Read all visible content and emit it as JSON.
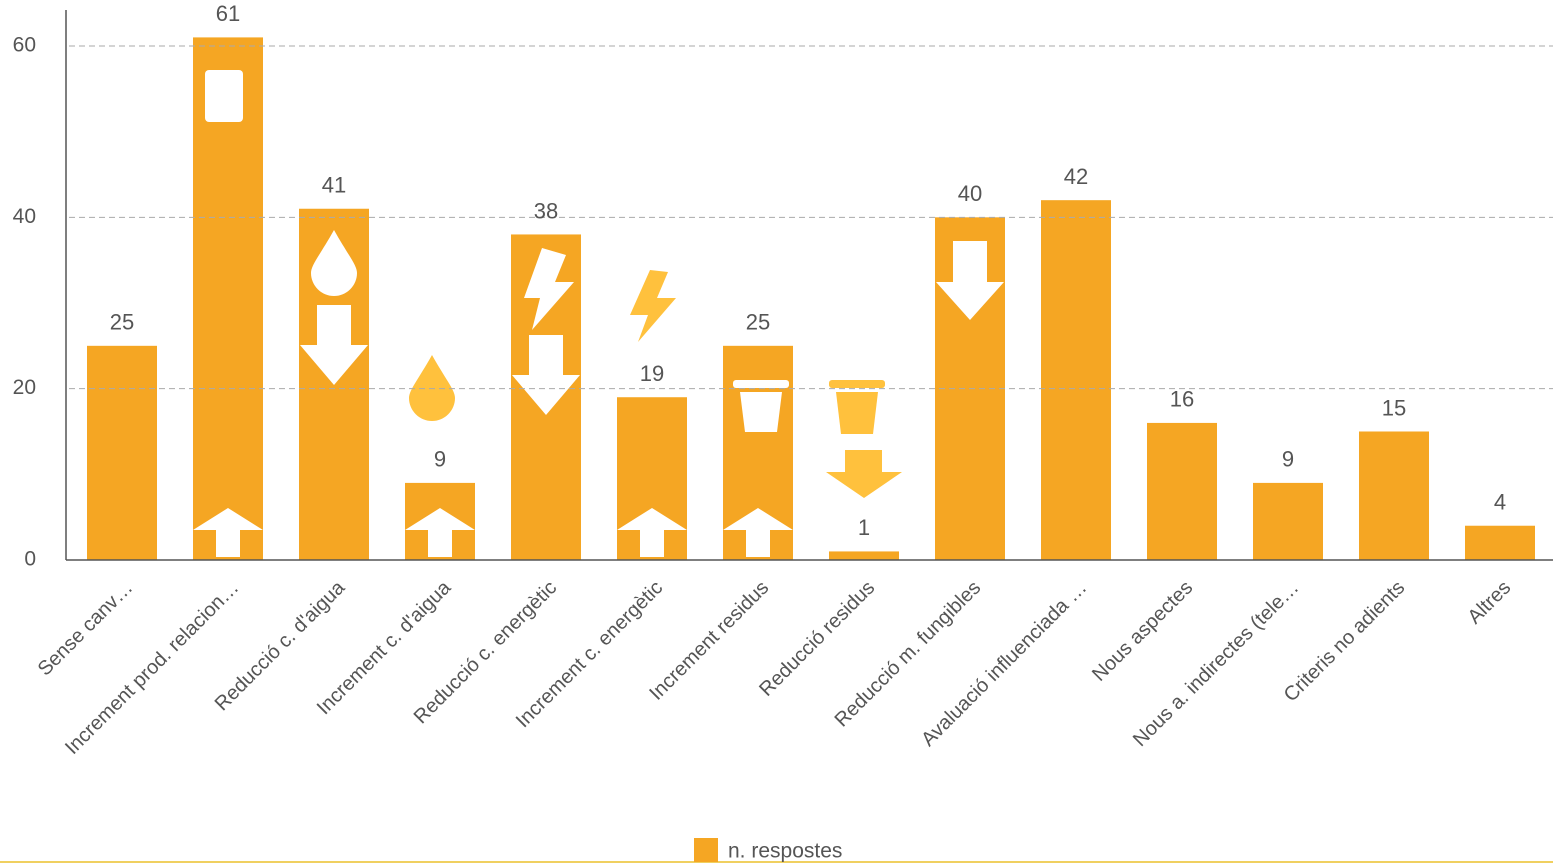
{
  "chart_data": {
    "type": "bar",
    "categories": [
      "Sense canv…",
      "Increment prod. relacion…",
      "Reducció c. d'aigua",
      "Increment c. d'aigua",
      "Reducció c. energètic",
      "Increment c. energètic",
      "Increment residus",
      "Reducció residus",
      "Reducció m. fungibles",
      "Avaluació influenciada …",
      "Nous aspectes",
      "Nous a. indirectes (tele…",
      "Criteris no adients",
      "Altres"
    ],
    "series": [
      {
        "name": "n. respostes",
        "color": "#f5a623",
        "values": [
          25,
          61,
          41,
          9,
          38,
          19,
          25,
          1,
          40,
          42,
          16,
          9,
          15,
          4
        ]
      }
    ],
    "ylim": [
      0,
      64
    ],
    "yticks": [
      0,
      20,
      40,
      60
    ],
    "grid": true,
    "legend": "bottom"
  }
}
